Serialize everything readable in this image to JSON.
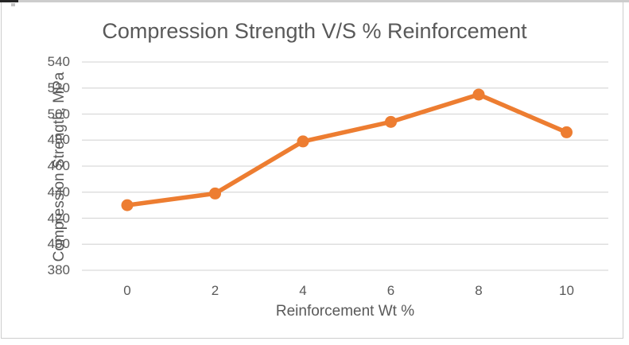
{
  "chart_data": {
    "type": "line",
    "title": "Compression Strength V/S % Reinforcement",
    "xlabel": "Reinforcement Wt %",
    "ylabel": "Compression Strength, MPa",
    "x": [
      0,
      2,
      4,
      6,
      8,
      10
    ],
    "xtick_labels": [
      "0",
      "2",
      "4",
      "6",
      "8",
      "10"
    ],
    "values": [
      430,
      439,
      479,
      494,
      515,
      486
    ],
    "yticks": [
      380,
      400,
      420,
      440,
      460,
      480,
      500,
      520,
      540
    ],
    "ylim": [
      380,
      540
    ],
    "grid": true,
    "legend": false,
    "line_color": "#ED7D31",
    "marker": "circle",
    "text_color": "#595959",
    "grid_color": "#D9D9D9",
    "border_color": "#CDCDCD"
  }
}
